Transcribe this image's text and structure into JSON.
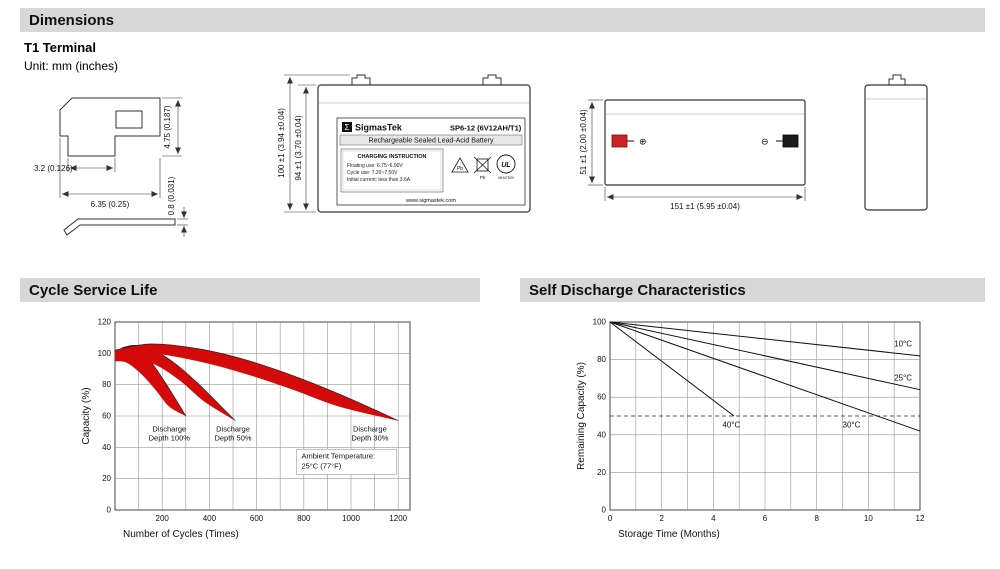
{
  "page": {
    "section_dimensions": "Dimensions",
    "terminal_type": "T1 Terminal",
    "unit_note": "Unit: mm (inches)"
  },
  "terminal_drawing": {
    "dim_slot": "3.2 (0.126)",
    "dim_width": "6.35 (0.25)",
    "dim_height": "4.75 (0.187)",
    "dim_thickness": "0.8 (0.031)"
  },
  "front_view": {
    "dim_total_height": "100 ±1 (3.94 ±0.04)",
    "dim_case_height": "94 ±1 (3.70 ±0.04)",
    "label": {
      "logo_sigma": "Σ",
      "brand": "SigmasTek",
      "model": "SP6-12 (6V12AH/T1)",
      "battery_type": "Rechargeable Sealed Lead-Acid Battery",
      "charging_title": "CHARGING INSTRUCTION",
      "charging_lines": [
        "Floating use: 6.75~6.90V",
        "Cycle use: 7.20~7.50V",
        "Initial current: less than 3.6A"
      ],
      "pb_recycle": "Pb",
      "pb_bin": "Pb",
      "ul_mark": "UL",
      "ul_code": "MH47529",
      "website": "www.sigmastek.com"
    }
  },
  "top_view": {
    "dim_length": "151 ±1 (5.95 ±0.04)",
    "dim_width": "51 ±1 (2.00 ±0.04)",
    "positive_symbol": "⊕",
    "negative_symbol": "⊖"
  },
  "chart_data": [
    {
      "id": "cycle-service-life",
      "type": "area",
      "title": "Cycle Service Life",
      "xlabel": "Number of Cycles (Times)",
      "ylabel": "Capacity (%)",
      "xlim": [
        0,
        1250
      ],
      "ylim": [
        0,
        120
      ],
      "xticks": [
        200,
        400,
        600,
        800,
        1000,
        1200
      ],
      "yticks": [
        0,
        20,
        40,
        60,
        80,
        100,
        120
      ],
      "x_grid_step": 100,
      "y_grid_step": 20,
      "grid": true,
      "band_color": "#d40a0a",
      "bands": [
        {
          "name": "Discharge Depth 100%",
          "top": [
            [
              0,
              100
            ],
            [
              40,
              104
            ],
            [
              90,
              103
            ],
            [
              150,
              95
            ],
            [
              210,
              82
            ],
            [
              260,
              70
            ],
            [
              300,
              60
            ]
          ],
          "bottom": [
            [
              0,
              95
            ],
            [
              50,
              94
            ],
            [
              110,
              87
            ],
            [
              170,
              77
            ],
            [
              230,
              66
            ],
            [
              300,
              60
            ]
          ]
        },
        {
          "name": "Discharge Depth 50%",
          "top": [
            [
              0,
              101
            ],
            [
              70,
              105
            ],
            [
              150,
              103
            ],
            [
              250,
              94
            ],
            [
              350,
              81
            ],
            [
              450,
              66
            ],
            [
              510,
              57
            ]
          ],
          "bottom": [
            [
              0,
              96
            ],
            [
              80,
              97
            ],
            [
              180,
              92
            ],
            [
              280,
              82
            ],
            [
              380,
              69
            ],
            [
              510,
              57
            ]
          ]
        },
        {
          "name": "Discharge Depth 30%",
          "top": [
            [
              0,
              102
            ],
            [
              150,
              106
            ],
            [
              350,
              103
            ],
            [
              550,
              96
            ],
            [
              750,
              86
            ],
            [
              950,
              74
            ],
            [
              1100,
              64
            ],
            [
              1200,
              57
            ]
          ],
          "bottom": [
            [
              0,
              97
            ],
            [
              150,
              100
            ],
            [
              350,
              95
            ],
            [
              550,
              87
            ],
            [
              750,
              77
            ],
            [
              950,
              66
            ],
            [
              1200,
              57
            ]
          ]
        }
      ],
      "annotations": [
        {
          "lines": [
            "Discharge",
            "Depth 100%"
          ],
          "x": 230,
          "y": 50
        },
        {
          "lines": [
            "Discharge",
            "Depth 50%"
          ],
          "x": 500,
          "y": 50
        },
        {
          "lines": [
            "Discharge",
            "Depth 30%"
          ],
          "x": 1080,
          "y": 50
        }
      ],
      "note": {
        "lines": [
          "Ambient Temperature:",
          "25°C (77°F)"
        ],
        "x": 790,
        "y": 33
      }
    },
    {
      "id": "self-discharge",
      "type": "line",
      "title": "Self Discharge Characteristics",
      "xlabel": "Storage Time (Months)",
      "ylabel": "Remaining Capacity (%)",
      "xlim": [
        0,
        12
      ],
      "ylim": [
        0,
        100
      ],
      "xticks": [
        0,
        2,
        4,
        6,
        8,
        10,
        12
      ],
      "yticks": [
        0,
        20,
        40,
        60,
        80,
        100
      ],
      "x_grid_step": 1,
      "y_grid_step": 20,
      "grid": true,
      "series": [
        {
          "name": "10°C",
          "points": [
            [
              0,
              100
            ],
            [
              12,
              82
            ]
          ],
          "label_at": [
            11.0,
            87
          ]
        },
        {
          "name": "25°C",
          "points": [
            [
              0,
              100
            ],
            [
              12,
              64
            ]
          ],
          "label_at": [
            11.0,
            69
          ]
        },
        {
          "name": "30°C",
          "points": [
            [
              0,
              100
            ],
            [
              12,
              42
            ]
          ],
          "label_at": [
            9.0,
            44
          ]
        },
        {
          "name": "40°C",
          "points": [
            [
              0,
              100
            ],
            [
              4.8,
              50
            ]
          ],
          "label_at": [
            4.35,
            44
          ]
        }
      ],
      "reference_line": {
        "y": 50,
        "style": "dashed"
      }
    }
  ]
}
